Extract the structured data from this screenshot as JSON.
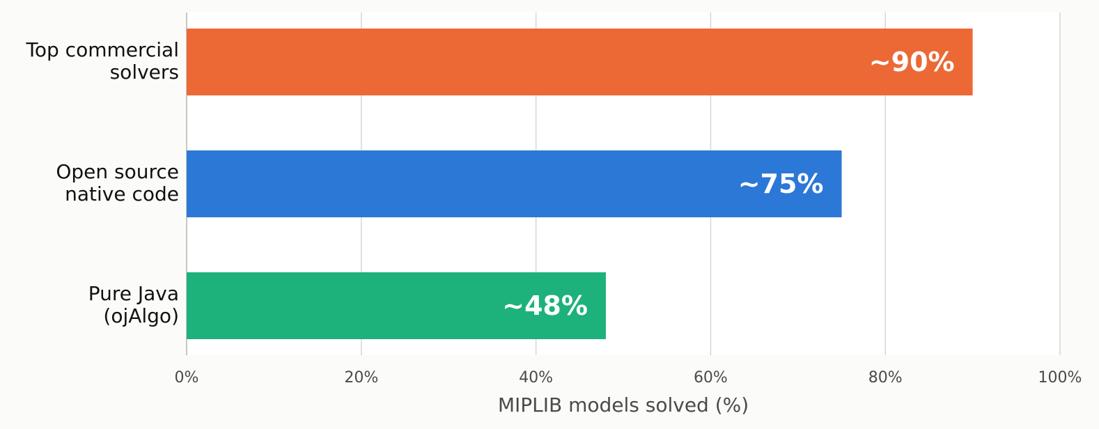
{
  "chart_data": {
    "type": "bar",
    "orientation": "horizontal",
    "categories": [
      [
        "Top commercial",
        "solvers"
      ],
      [
        "Open source",
        "native code"
      ],
      [
        "Pure Java",
        "(ojAlgo)"
      ]
    ],
    "values": [
      90,
      75,
      48
    ],
    "data_labels": [
      "~90%",
      "~75%",
      "~48%"
    ],
    "colors": [
      "#ec6936",
      "#2b78d6",
      "#1db17b"
    ],
    "xlabel": "MIPLIB models solved (%)",
    "xlim": [
      0,
      100
    ],
    "xticks": [
      0,
      20,
      40,
      60,
      80,
      100
    ],
    "xtick_labels": [
      "0%",
      "20%",
      "40%",
      "60%",
      "80%",
      "100%"
    ],
    "grid": "vertical",
    "legend": "none"
  }
}
